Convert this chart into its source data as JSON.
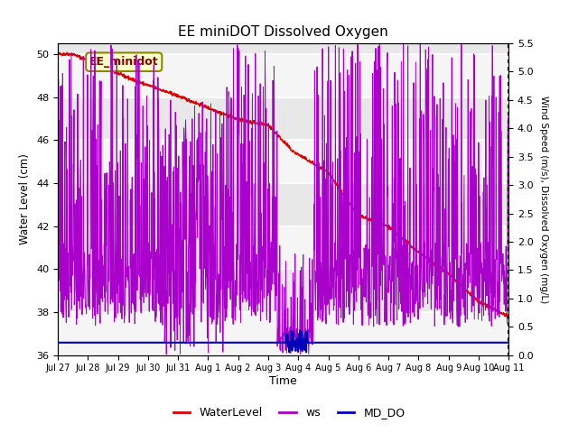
{
  "title": "EE miniDOT Dissolved Oxygen",
  "xlabel": "Time",
  "ylabel_left": "Water Level (cm)",
  "ylabel_right": "Wind Speed (m/s), Dissolved Oxygen (mg/L)",
  "ylim_left": [
    36,
    50.5
  ],
  "ylim_right": [
    0.0,
    5.5
  ],
  "yticks_left": [
    36,
    38,
    40,
    42,
    44,
    46,
    48,
    50
  ],
  "yticks_right": [
    0.0,
    0.5,
    1.0,
    1.5,
    2.0,
    2.5,
    3.0,
    3.5,
    4.0,
    4.5,
    5.0,
    5.5
  ],
  "annotation_text": "EE_minidot",
  "bg_color": "#ffffff",
  "plot_bg_color": "#e8e8e8",
  "water_level_color": "#dd0000",
  "ws_color": "#aa00cc",
  "md_do_color": "#0000bb",
  "legend_items": [
    "WaterLevel",
    "ws",
    "MD_DO"
  ],
  "xtick_labels": [
    "Jul 27",
    "Jul 28",
    "Jul 29",
    "Jul 30",
    "Jul 31",
    "Aug 1",
    "Aug 2",
    "Aug 3",
    "Aug 4",
    "Aug 5",
    "Aug 6",
    "Aug 7",
    "Aug 8",
    "Aug 9",
    "Aug 10",
    "Aug 11"
  ],
  "n_points": 1500
}
